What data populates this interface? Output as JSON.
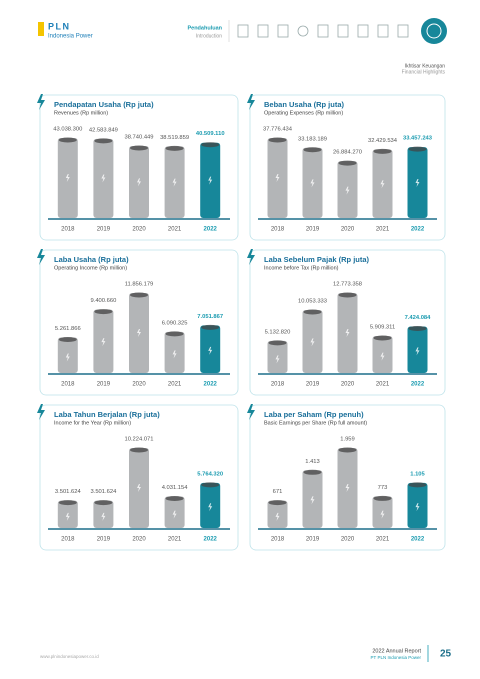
{
  "header": {
    "logo": "PLN",
    "logo_sub": "Indonesia Power",
    "section": "Pendahuluan",
    "section_en": "Introduction",
    "page_title": "Ikhtisar Keuangan",
    "page_title_en": "Financial Highlights"
  },
  "chart_data": [
    {
      "type": "bar",
      "title": "Pendapatan Usaha (Rp juta)",
      "subtitle": "Revenues (Rp million)",
      "categories": [
        "2018",
        "2019",
        "2020",
        "2021",
        "2022"
      ],
      "values": [
        43038300,
        42583849,
        38740449,
        38519859,
        40509110
      ],
      "value_labels": [
        "43.038.300",
        "42.583.849",
        "38.740.449",
        "38.519.859",
        "40.509.110"
      ],
      "colors": [
        "#b3b5b7",
        "#b3b5b7",
        "#b3b5b7",
        "#b3b5b7",
        "#17879a"
      ],
      "label_colors": [
        "#555555",
        "#555555",
        "#555555",
        "#555555",
        "#1a9bb0"
      ]
    },
    {
      "type": "bar",
      "title": "Beban Usaha (Rp juta)",
      "subtitle": "Operating Expenses (Rp million)",
      "categories": [
        "2018",
        "2019",
        "2020",
        "2021",
        "2022"
      ],
      "values": [
        37776434,
        33183189,
        26884270,
        32429534,
        33457243
      ],
      "value_labels": [
        "37.776.434",
        "33.183.189",
        "26.884.270",
        "32.429.534",
        "33.457.243"
      ],
      "colors": [
        "#b3b5b7",
        "#b3b5b7",
        "#b3b5b7",
        "#b3b5b7",
        "#17879a"
      ],
      "label_colors": [
        "#555555",
        "#555555",
        "#555555",
        "#555555",
        "#1a9bb0"
      ]
    },
    {
      "type": "bar",
      "title": "Laba Usaha (Rp juta)",
      "subtitle": "Operating Income (Rp million)",
      "categories": [
        "2018",
        "2019",
        "2020",
        "2021",
        "2022"
      ],
      "values": [
        5261866,
        9400660,
        11856179,
        6090325,
        7051867
      ],
      "value_labels": [
        "5.261.866",
        "9.400.660",
        "11.856.179",
        "6.090.325",
        "7.051.867"
      ],
      "colors": [
        "#b3b5b7",
        "#b3b5b7",
        "#b3b5b7",
        "#b3b5b7",
        "#17879a"
      ],
      "label_colors": [
        "#555555",
        "#555555",
        "#555555",
        "#555555",
        "#1a9bb0"
      ]
    },
    {
      "type": "bar",
      "title": "Laba Sebelum Pajak (Rp juta)",
      "subtitle": "Income before Tax (Rp million)",
      "categories": [
        "2018",
        "2019",
        "2020",
        "2021",
        "2022"
      ],
      "values": [
        5132820,
        10053333,
        12773358,
        5909311,
        7424084
      ],
      "value_labels": [
        "5.132.820",
        "10.053.333",
        "12.773.358",
        "5.909.311",
        "7.424.084"
      ],
      "colors": [
        "#b3b5b7",
        "#b3b5b7",
        "#b3b5b7",
        "#b3b5b7",
        "#17879a"
      ],
      "label_colors": [
        "#555555",
        "#555555",
        "#555555",
        "#555555",
        "#1a9bb0"
      ]
    },
    {
      "type": "bar",
      "title": "Laba Tahun Berjalan (Rp juta)",
      "subtitle": "Income for the Year (Rp million)",
      "categories": [
        "2018",
        "2019",
        "2020",
        "2021",
        "2022"
      ],
      "values": [
        3501624,
        3501624,
        10224071,
        4031154,
        5764320
      ],
      "value_labels": [
        "3.501.624",
        "3.501.624",
        "10.224.071",
        "4.031.154",
        "5.764.320"
      ],
      "colors": [
        "#b3b5b7",
        "#b3b5b7",
        "#b3b5b7",
        "#b3b5b7",
        "#17879a"
      ],
      "label_colors": [
        "#555555",
        "#555555",
        "#555555",
        "#555555",
        "#1a9bb0"
      ]
    },
    {
      "type": "bar",
      "title": "Laba per Saham (Rp penuh)",
      "subtitle": "Basic Earnings per Share (Rp full amount)",
      "categories": [
        "2018",
        "2019",
        "2020",
        "2021",
        "2022"
      ],
      "values": [
        671,
        1413,
        1959,
        773,
        1105
      ],
      "value_labels": [
        "671",
        "1.413",
        "1.959",
        "773",
        "1.105"
      ],
      "colors": [
        "#b3b5b7",
        "#b3b5b7",
        "#b3b5b7",
        "#b3b5b7",
        "#17879a"
      ],
      "label_colors": [
        "#555555",
        "#555555",
        "#555555",
        "#555555",
        "#1a9bb0"
      ]
    }
  ],
  "footer": {
    "url": "www.plnindonesiapower.co.id",
    "report": "2022 Annual Report",
    "company": "PT PLN Indonesia Power",
    "page": "25"
  }
}
